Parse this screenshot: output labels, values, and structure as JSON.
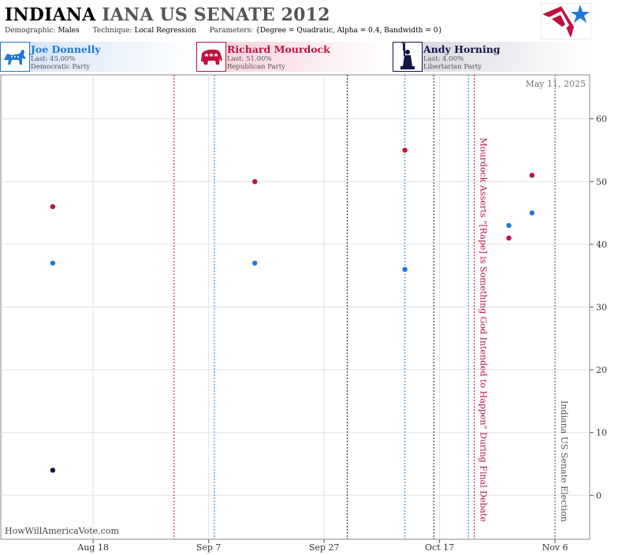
{
  "header": {
    "state": "INDIANA",
    "race": "IANA US SENATE 2012",
    "demographic_label": "Demographic:",
    "demographic_value": "Males",
    "technique_label": "Technique:",
    "technique_value": "Local Regression",
    "parameters_label": "Parameters:",
    "parameters_value": "{Degree = Quadratic, Alpha = 0.4, Bandwidth = 0}",
    "logo_icon": "star-flag-logo-icon"
  },
  "candidates": [
    {
      "name": "Joe Donnelly",
      "last": "Last: 45.00%",
      "party": "Democratic Party",
      "color": "#1f78d6",
      "bg": "#d6e6f8",
      "icon": "donkey-icon"
    },
    {
      "name": "Richard Mourdock",
      "last": "Last: 51.00%",
      "party": "Republican Party",
      "color": "#c0103c",
      "bg": "#f8d6de",
      "icon": "elephant-icon"
    },
    {
      "name": "Andy Horning",
      "last": "Last: 4.00%",
      "party": "Libertarian Party",
      "color": "#14144a",
      "bg": "#dcdce6",
      "icon": "statue-of-liberty-icon"
    }
  ],
  "footer": "HowWillAmericaVote.com",
  "chart_data": {
    "type": "scatter",
    "date_label": "May 11, 2025",
    "x_ticks": [
      {
        "date": "2012-08-18",
        "label": "Aug 18"
      },
      {
        "date": "2012-09-07",
        "label": "Sep 7"
      },
      {
        "date": "2012-09-27",
        "label": "Sep 27"
      },
      {
        "date": "2012-10-17",
        "label": "Oct 17"
      },
      {
        "date": "2012-11-06",
        "label": "Nov 6"
      }
    ],
    "xlim": [
      "2012-08-02",
      "2012-11-12"
    ],
    "ylim": [
      -7,
      67
    ],
    "y_ticks": [
      0,
      10,
      20,
      30,
      40,
      50,
      60
    ],
    "grid": true,
    "series": [
      {
        "name": "Joe Donnelly",
        "color": "#1f78d6",
        "points": [
          {
            "x": "2012-08-11",
            "y": 37
          },
          {
            "x": "2012-09-15",
            "y": 37
          },
          {
            "x": "2012-10-11",
            "y": 36
          },
          {
            "x": "2012-10-29",
            "y": 43
          },
          {
            "x": "2012-11-02",
            "y": 45
          }
        ]
      },
      {
        "name": "Richard Mourdock",
        "color": "#c0103c",
        "points": [
          {
            "x": "2012-08-11",
            "y": 46
          },
          {
            "x": "2012-09-15",
            "y": 50
          },
          {
            "x": "2012-10-11",
            "y": 55
          },
          {
            "x": "2012-10-29",
            "y": 41
          },
          {
            "x": "2012-11-02",
            "y": 51
          }
        ]
      },
      {
        "name": "Andy Horning",
        "color": "#14144a",
        "points": [
          {
            "x": "2012-08-11",
            "y": 4
          }
        ]
      }
    ],
    "event_lines": [
      {
        "date": "2012-09-01",
        "color": "#c0103c"
      },
      {
        "date": "2012-09-08",
        "color": "#1f78d6"
      },
      {
        "date": "2012-10-01",
        "color": "#14144a"
      },
      {
        "date": "2012-10-11",
        "color": "#1f78d6"
      },
      {
        "date": "2012-10-16",
        "color": "#14144a"
      },
      {
        "date": "2012-10-22",
        "color": "#1f78d6"
      },
      {
        "date": "2012-10-23",
        "color": "#c0103c"
      },
      {
        "date": "2012-11-06",
        "color": "#555555"
      }
    ],
    "annotations": [
      {
        "date": "2012-10-23",
        "text": "Mourdock Asserts \"[Rape] is Something God Intended to Happen\" During Final Debate",
        "color": "#c0103c"
      },
      {
        "date": "2012-11-06",
        "text": "Indiana US Senate Election",
        "color": "#555555"
      }
    ]
  }
}
